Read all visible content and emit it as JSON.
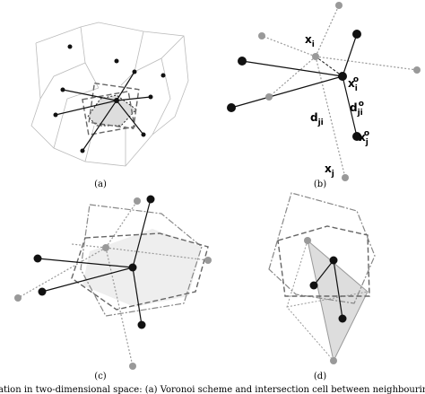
{
  "panels": [
    {
      "label": "(a)"
    },
    {
      "label": "(b)"
    },
    {
      "label": "(c)"
    },
    {
      "label": "(d)"
    }
  ],
  "annotations": [
    {
      "base": "x",
      "sub": "i"
    },
    {
      "base": "x",
      "sub": "i",
      "sup": "o"
    },
    {
      "base": "d",
      "sub": "ji",
      "sup": "o"
    },
    {
      "base": "d",
      "sub": "ji"
    },
    {
      "base": "x",
      "sub": "j",
      "sup": "o"
    },
    {
      "base": "x",
      "sub": "j"
    }
  ],
  "caption": "ation in two-dimensional space: (a) Voronoi scheme and intersection cell between neighbouring atoms"
}
